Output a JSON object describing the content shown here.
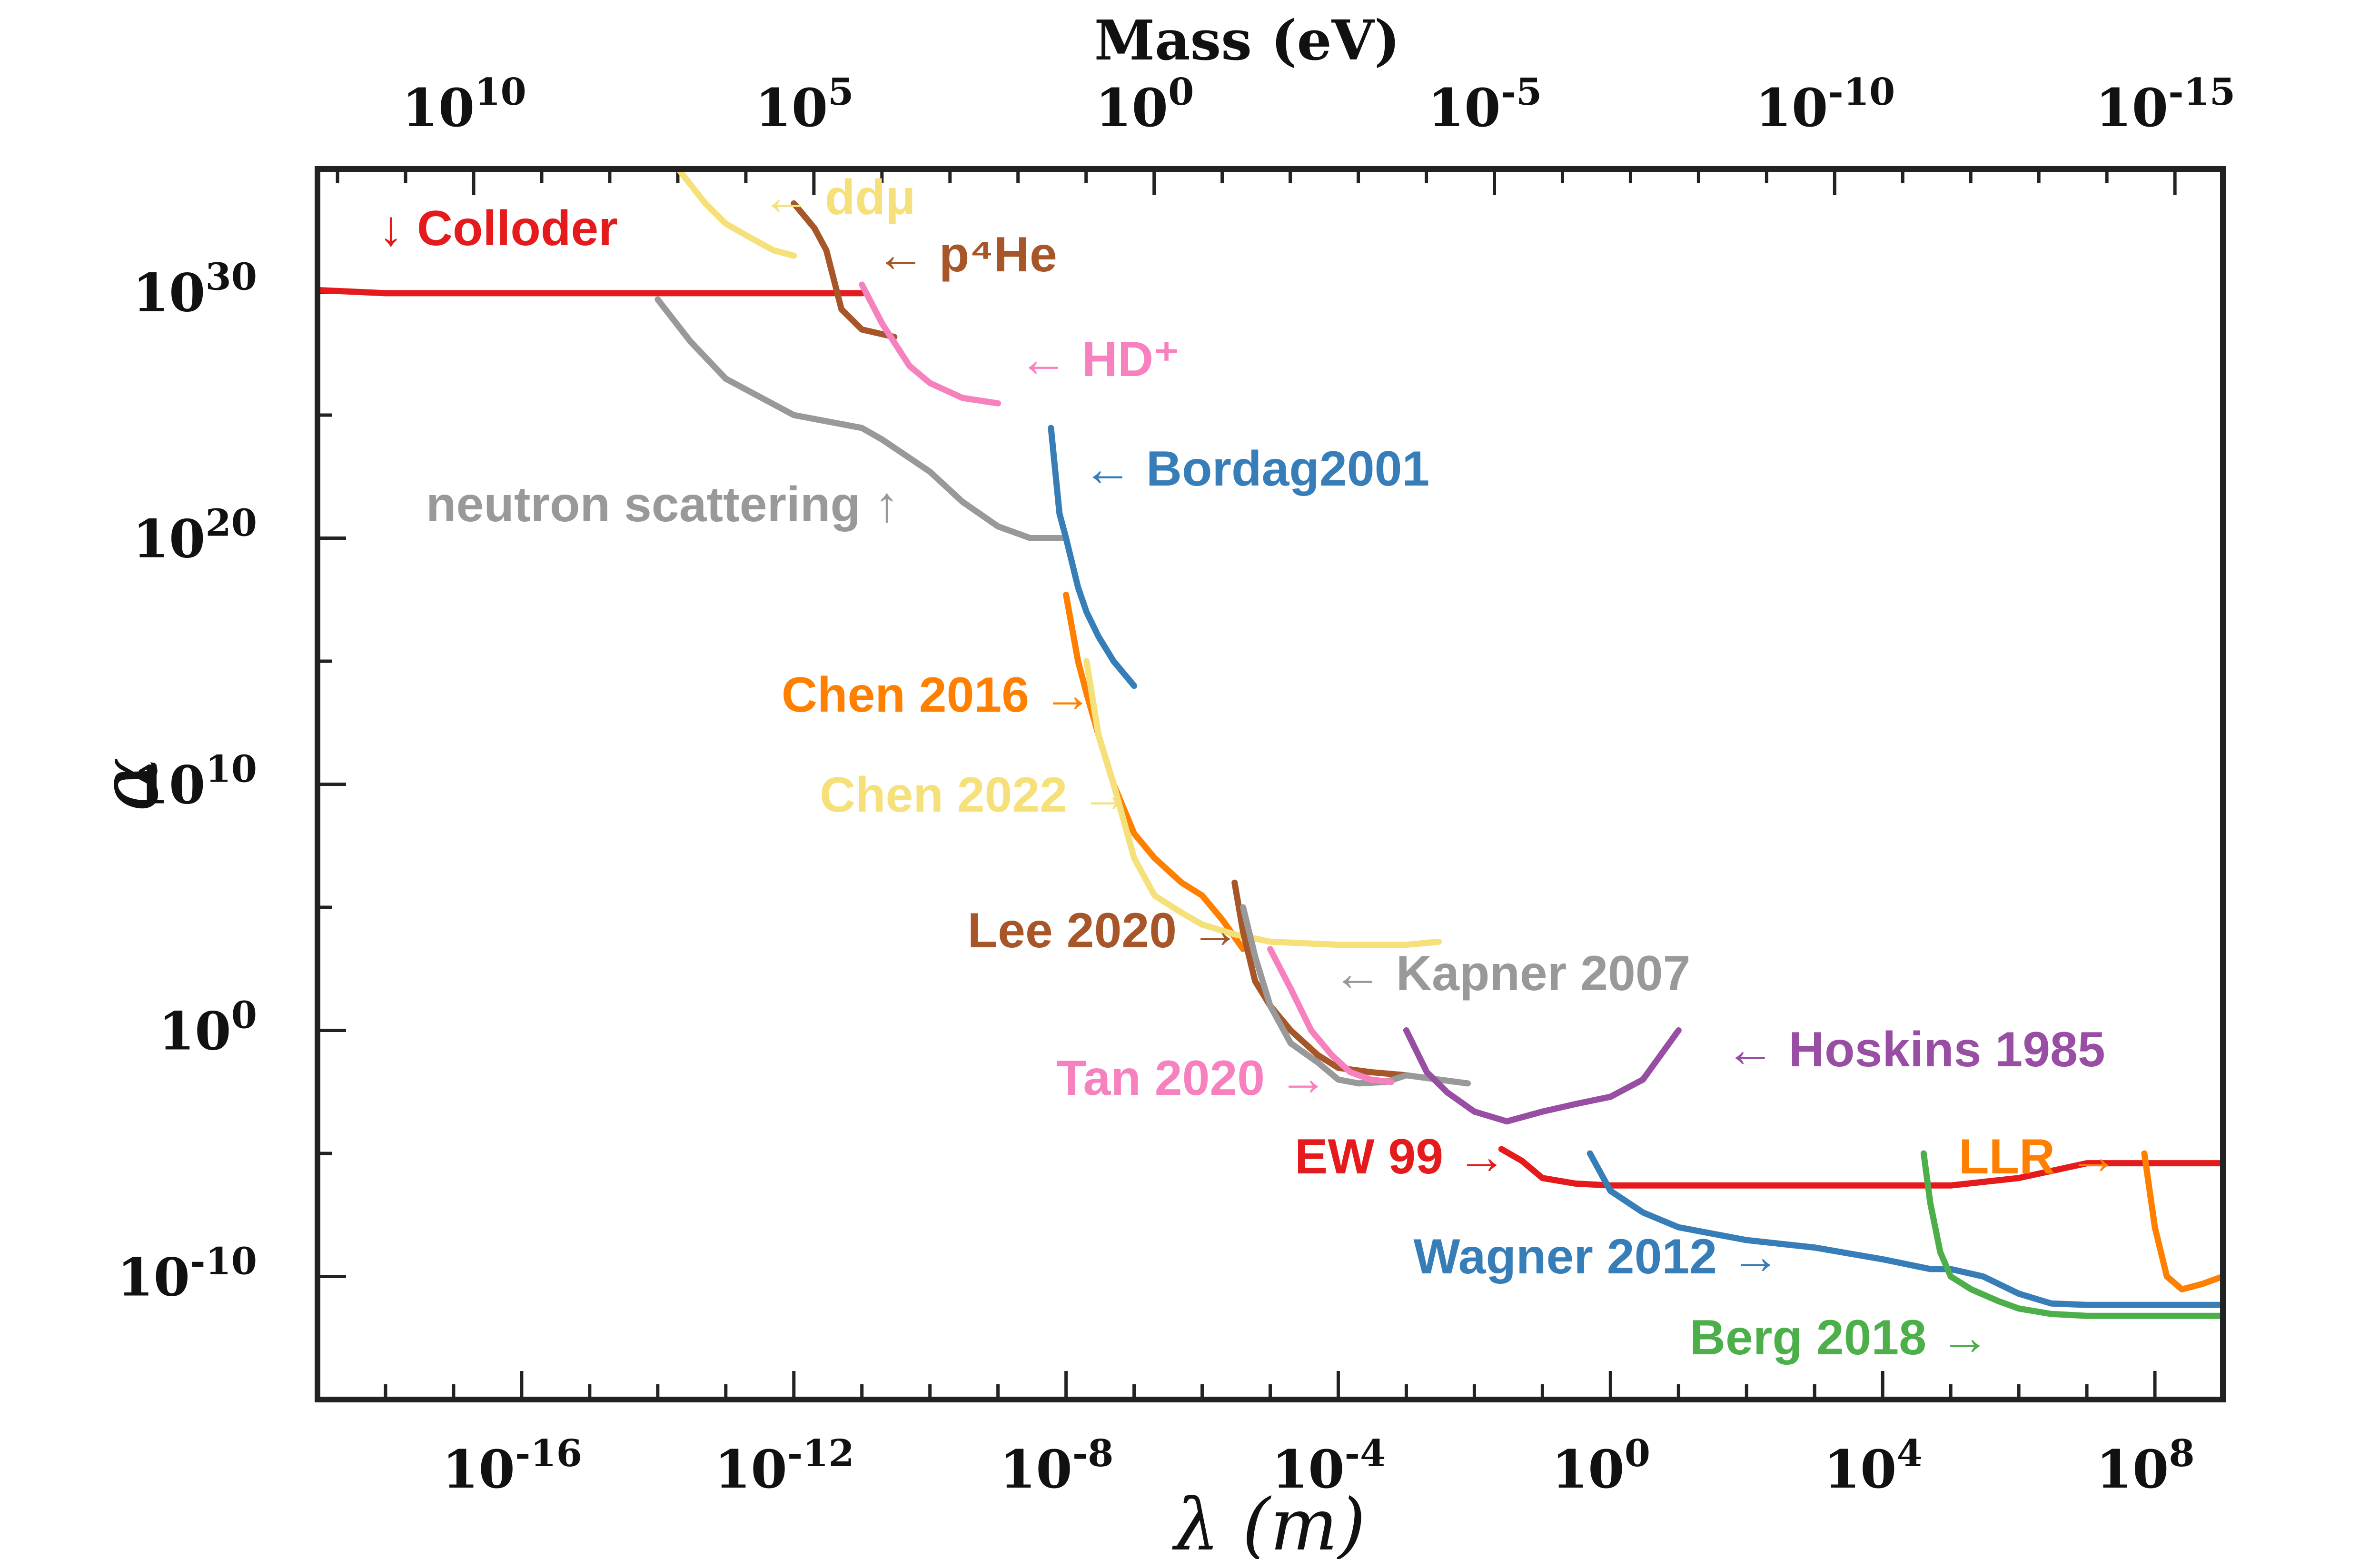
{
  "chart_data": {
    "type": "line",
    "title": "",
    "xlabel": "λ (m)",
    "ylabel": "α",
    "x2label": "Mass (eV)",
    "xscale": "log",
    "yscale": "log",
    "xlim": [
      1e-19,
      1000000000.0
    ],
    "ylim": [
      1e-15,
      1e+35
    ],
    "x_ticks": [
      {
        "base": "10",
        "exp": "-16"
      },
      {
        "base": "10",
        "exp": "-12"
      },
      {
        "base": "10",
        "exp": "-8"
      },
      {
        "base": "10",
        "exp": "-4"
      },
      {
        "base": "10",
        "exp": "0"
      },
      {
        "base": "10",
        "exp": "4"
      },
      {
        "base": "10",
        "exp": "8"
      }
    ],
    "x2_ticks": [
      {
        "base": "10",
        "exp": "10"
      },
      {
        "base": "10",
        "exp": "5"
      },
      {
        "base": "10",
        "exp": "0"
      },
      {
        "base": "10",
        "exp": "-5"
      },
      {
        "base": "10",
        "exp": "-10"
      },
      {
        "base": "10",
        "exp": "-15"
      }
    ],
    "y_ticks": [
      {
        "base": "10",
        "exp": "30"
      },
      {
        "base": "10",
        "exp": "20"
      },
      {
        "base": "10",
        "exp": "10"
      },
      {
        "base": "10",
        "exp": "0"
      },
      {
        "base": "10",
        "exp": "-10"
      }
    ],
    "grid": false,
    "legend": "inline labels",
    "series": [
      {
        "name": "Colloder",
        "arrow": "↓",
        "color": "#e41a1c",
        "x": [
          1e-19,
          1e-18,
          1e-17,
          1e-16,
          1e-15,
          1e-14,
          1e-13,
          1e-12,
          1e-11
        ],
        "y": [
          1.2e+30,
          9e+29,
          9e+29,
          9e+29,
          9e+29,
          9e+29,
          9e+29,
          9e+29,
          9e+29
        ]
      },
      {
        "name": "ddμ",
        "arrow": "←",
        "color": "#f5e07a",
        "x": [
          2e-14,
          5e-14,
          1e-13,
          2e-13,
          5e-13,
          1e-12
        ],
        "y": [
          1e+35,
          4e+33,
          6e+32,
          2e+32,
          5e+31,
          3e+31
        ]
      },
      {
        "name": "p⁴He",
        "arrow": "←",
        "color": "#a65628",
        "x": [
          1e-12,
          2e-12,
          3e-12,
          5e-12,
          1e-11,
          3e-11
        ],
        "y": [
          4e+33,
          4e+32,
          5e+31,
          2e+29,
          3e+28,
          1.5e+28
        ]
      },
      {
        "name": "HD⁺",
        "arrow": "←",
        "color": "#f781bf",
        "x": [
          1e-11,
          2e-11,
          5e-11,
          1e-10,
          3e-10,
          1e-09
        ],
        "y": [
          2e+30,
          5e+28,
          1e+27,
          2e+26,
          5e+25,
          3e+25
        ]
      },
      {
        "name": "neutron scattering",
        "arrow": "↑",
        "color": "#999999",
        "x": [
          1e-14,
          3e-14,
          1e-13,
          1e-12,
          1e-11,
          2e-11,
          1e-10,
          3e-10,
          1e-09,
          3e-09,
          1e-08
        ],
        "y": [
          5e+29,
          1e+28,
          3e+26,
          1e+25,
          3e+24,
          1e+24,
          5e+22,
          3e+21,
          3e+20,
          1e+20,
          1e+20
        ]
      },
      {
        "name": "Bordag2001",
        "arrow": "←",
        "color": "#377eb8",
        "x": [
          6e-09,
          8e-09,
          1e-08,
          1.5e-08,
          2e-08,
          3e-08,
          5e-08,
          1e-07
        ],
        "y": [
          3e+24,
          1e+21,
          1e+20,
          1e+18,
          1e+17,
          1e+16,
          1000000000000000.0,
          100000000000000.0
        ]
      },
      {
        "name": "Chen 2016",
        "arrow": "→",
        "color": "#ff7f00",
        "x": [
          1e-08,
          1.5e-08,
          2e-08,
          3e-08,
          5e-08,
          1e-07,
          2e-07,
          5e-07,
          1e-06,
          2e-06,
          4e-06
        ],
        "y": [
          5e+17,
          1000000000000000.0,
          50000000000000.0,
          1000000000000.0,
          10000000000.0,
          100000000.0,
          10000000.0,
          1000000.0,
          300000.0,
          30000.0,
          2000.0
        ]
      },
      {
        "name": "Chen 2022",
        "arrow": "→",
        "color": "#f5e07a",
        "x": [
          2e-08,
          3e-08,
          5e-08,
          1e-07,
          2e-07,
          5e-07,
          1e-06,
          3e-06,
          1e-05,
          0.0001,
          0.001,
          0.003
        ],
        "y": [
          1000000000000000.0,
          1000000000000.0,
          10000000000.0,
          10000000.0,
          300000.0,
          60000.0,
          20000.0,
          8000.0,
          4000.0,
          3000.0,
          3000.0,
          4000.0
        ]
      },
      {
        "name": "Lee 2020",
        "arrow": "→",
        "color": "#a65628",
        "x": [
          3e-06,
          4e-06,
          6e-06,
          1e-05,
          2e-05,
          5e-05,
          0.0001,
          0.0003,
          0.001
        ],
        "y": [
          1000000.0,
          10000.0,
          100.0,
          10,
          1,
          0.1,
          0.03,
          0.02,
          0.015
        ]
      },
      {
        "name": "Kapner 2007",
        "arrow": "←",
        "color": "#999999",
        "x": [
          4e-06,
          6e-06,
          1e-05,
          2e-05,
          5e-05,
          0.0001,
          0.0002,
          0.0005,
          0.001,
          0.003,
          0.008
        ],
        "y": [
          100000.0,
          1000.0,
          10,
          0.3,
          0.05,
          0.01,
          0.007,
          0.008,
          0.015,
          0.01,
          0.007
        ]
      },
      {
        "name": "Tan 2020",
        "arrow": "→",
        "color": "#f781bf",
        "x": [
          1e-05,
          2e-05,
          4e-05,
          8e-05,
          0.00015,
          0.0003,
          0.0006
        ],
        "y": [
          2000.0,
          50,
          1,
          0.1,
          0.02,
          0.01,
          0.008
        ]
      },
      {
        "name": "Hoskins 1985",
        "arrow": "←",
        "color": "#984ea3",
        "x": [
          0.001,
          0.002,
          0.004,
          0.01,
          0.03,
          0.1,
          0.3,
          1,
          3,
          10.0
        ],
        "y": [
          1,
          0.02,
          0.003,
          0.0005,
          0.0002,
          0.0005,
          0.001,
          0.002,
          0.01,
          1
        ]
      },
      {
        "name": "EW 99",
        "arrow": "→",
        "color": "#e41a1c",
        "x": [
          0.025,
          0.05,
          0.1,
          0.3,
          1,
          10,
          100,
          1000.0,
          10000.0,
          100000.0,
          1000000.0,
          10000000.0,
          100000000.0,
          1000000000.0
        ],
        "y": [
          1.5e-05,
          5e-06,
          1e-06,
          6e-07,
          5e-07,
          5e-07,
          5e-07,
          5e-07,
          5e-07,
          5e-07,
          1e-06,
          4e-06,
          4e-06,
          4e-06
        ]
      },
      {
        "name": "Wagner 2012",
        "arrow": "→",
        "color": "#377eb8",
        "x": [
          0.5,
          1,
          3,
          10,
          100,
          1000.0,
          10000.0,
          50000.0,
          100000.0,
          300000.0,
          1000000.0,
          3000000.0,
          10000000.0,
          100000000.0,
          1000000000.0
        ],
        "y": [
          1e-05,
          3e-07,
          4e-08,
          1e-08,
          3e-09,
          1.5e-09,
          5e-10,
          2e-10,
          2e-10,
          1e-10,
          2e-11,
          8e-12,
          7e-12,
          7e-12,
          7e-12
        ]
      },
      {
        "name": "Berg 2018",
        "arrow": "→",
        "color": "#4daf4a",
        "x": [
          40000.0,
          50000.0,
          70000.0,
          100000.0,
          200000.0,
          500000.0,
          1000000.0,
          3000000.0,
          10000000.0,
          100000000.0,
          1000000000.0
        ],
        "y": [
          1e-05,
          1e-07,
          1e-09,
          1e-10,
          3e-11,
          1e-11,
          5e-12,
          3e-12,
          2.5e-12,
          2.5e-12,
          2.5e-12
        ]
      },
      {
        "name": "LLR",
        "arrow": "→",
        "color": "#ff7f00",
        "x": [
          70000000.0,
          100000000.0,
          150000000.0,
          250000000.0,
          500000000.0,
          1000000000.0
        ],
        "y": [
          1e-05,
          1e-08,
          1e-10,
          3e-11,
          5e-11,
          1e-10
        ]
      }
    ]
  }
}
